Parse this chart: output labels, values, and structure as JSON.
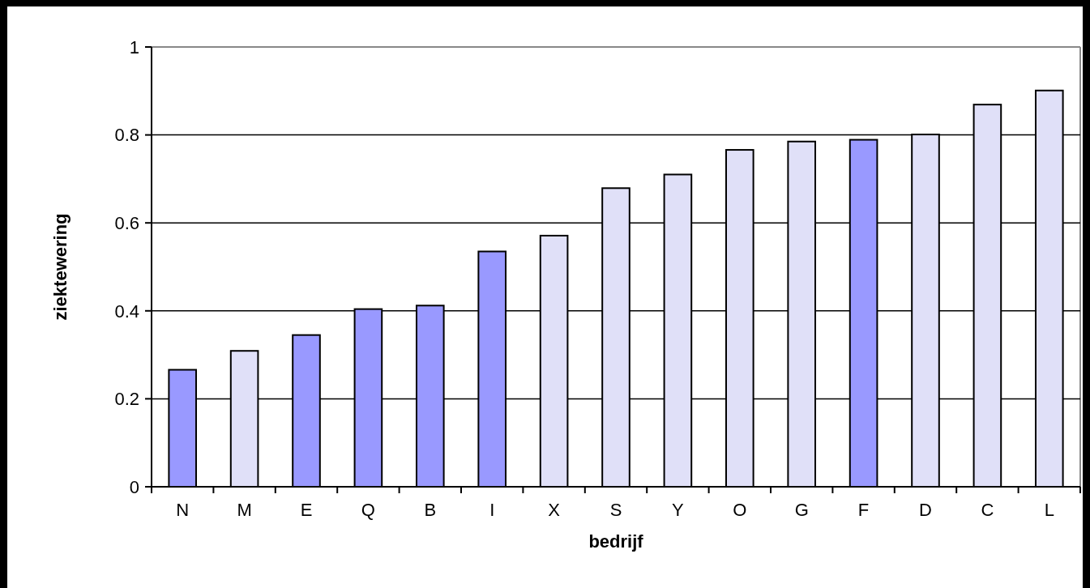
{
  "chart_data": {
    "type": "bar",
    "xlabel": "bedrijf",
    "ylabel": "ziektewering",
    "categories": [
      "N",
      "M",
      "E",
      "Q",
      "B",
      "I",
      "X",
      "S",
      "Y",
      "O",
      "G",
      "F",
      "D",
      "C",
      "L"
    ],
    "values": [
      0.266,
      0.309,
      0.345,
      0.404,
      0.412,
      0.535,
      0.571,
      0.679,
      0.71,
      0.766,
      0.785,
      0.789,
      0.801,
      0.869,
      0.901
    ],
    "colors": [
      "#9999ff",
      "#e0e0f8",
      "#9999ff",
      "#9999ff",
      "#9999ff",
      "#9999ff",
      "#e0e0f8",
      "#e0e0f8",
      "#e0e0f8",
      "#e0e0f8",
      "#e0e0f8",
      "#9999ff",
      "#e0e0f8",
      "#e0e0f8",
      "#e0e0f8"
    ],
    "ylim": [
      0,
      1
    ],
    "yticks": [
      0,
      0.2,
      0.4,
      0.6,
      0.8,
      1
    ],
    "grid": "y"
  }
}
